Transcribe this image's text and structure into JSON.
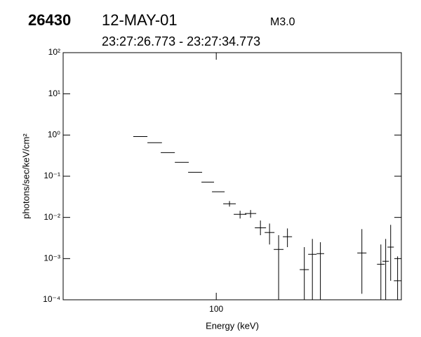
{
  "chart_data": {
    "type": "errorbar",
    "title": "26430",
    "date": "12-MAY-01",
    "flare_class": "M3.0",
    "subtitle": "23:27:26.773 - 23:27:34.773",
    "x_label": "Energy (keV)",
    "y_label": "photons/sec/keV/cm²",
    "x_log": true,
    "y_log": true,
    "color": "#000000",
    "xlim": [
      20,
      700
    ],
    "xticks": [
      100
    ],
    "ylim": [
      0.0001,
      100
    ],
    "yticks": [
      {
        "value": 100,
        "label": "10²"
      },
      {
        "value": 10,
        "label": "10¹"
      },
      {
        "value": 1,
        "label": "10⁰"
      },
      {
        "value": 0.1,
        "label": "10⁻¹"
      },
      {
        "value": 0.01,
        "label": "10⁻²"
      },
      {
        "value": 0.001,
        "label": "10⁻³"
      },
      {
        "value": 0.0001,
        "label": "10⁻⁴"
      }
    ],
    "x_low": [
      41.8,
      48.5,
      55.8,
      64.7,
      74.4,
      85.6,
      95.6,
      107.6,
      120.2,
      135.2,
      150,
      166.3,
      183,
      201.4,
      240.5,
      262.8,
      287.2,
      440.5,
      542,
      574,
      605,
      646.7
    ],
    "x_high": [
      48.5,
      56.5,
      64.7,
      74.9,
      86.2,
      97.7,
      109.2,
      122.8,
      137.3,
      152.2,
      168.8,
      184.4,
      202.8,
      221.8,
      264.9,
      287.2,
      311,
      485,
      587.6,
      614,
      646.7,
      700
    ],
    "values": [
      0.92,
      0.65,
      0.375,
      0.217,
      0.125,
      0.072,
      0.042,
      0.0214,
      0.0119,
      0.0124,
      0.0056,
      0.0043,
      0.00167,
      0.0034,
      0.00054,
      0.00127,
      0.00132,
      0.00137,
      0.00073,
      0.00086,
      0.0019,
      0.00029
    ],
    "y_low": [
      null,
      null,
      null,
      null,
      null,
      null,
      null,
      0.0183,
      0.0094,
      0.0098,
      0.0037,
      0.0022,
      0.0001,
      0.0019,
      0.0001,
      0.0001,
      0.0001,
      0.00014,
      0.0001,
      0.0001,
      0.00029,
      0.0001
    ],
    "y_high": [
      null,
      null,
      null,
      null,
      null,
      null,
      null,
      0.025,
      0.0145,
      0.0151,
      0.0084,
      0.0071,
      0.0037,
      0.0054,
      0.0019,
      0.003,
      0.0025,
      0.0052,
      0.0022,
      0.003,
      0.0066,
      0.00113
    ]
  }
}
